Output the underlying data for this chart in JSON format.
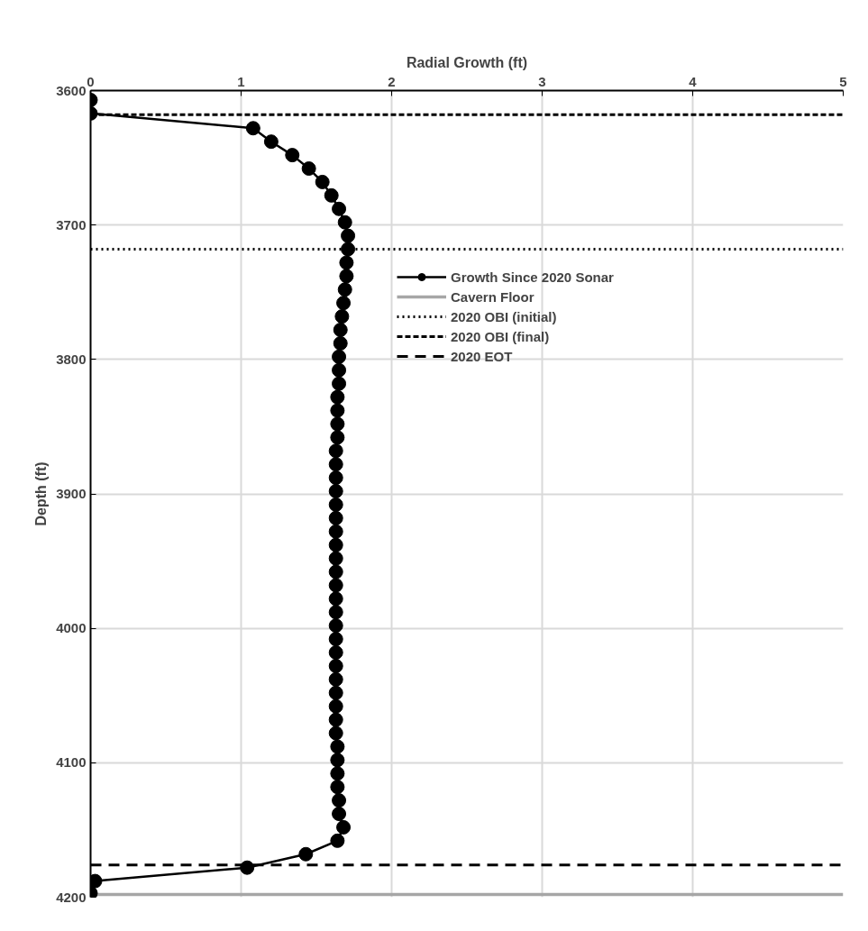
{
  "chart_data": {
    "type": "line",
    "xlabel": "Radial Growth (ft)",
    "ylabel": "Depth (ft)",
    "xlim": [
      0,
      5
    ],
    "xticks": [
      0,
      1,
      2,
      3,
      4,
      5
    ],
    "ylim": [
      4200,
      3600
    ],
    "yticks": [
      3600,
      3700,
      3800,
      3900,
      4000,
      4100,
      4200
    ],
    "grid": true,
    "legend": "right",
    "marker": "circle",
    "line_style": "solid",
    "series": [
      {
        "name": "Growth Since 2020 Sonar",
        "color": "#000000",
        "x": [
          0,
          0,
          1.08,
          1.2,
          1.34,
          1.45,
          1.54,
          1.6,
          1.65,
          1.69,
          1.71,
          1.71,
          1.7,
          1.7,
          1.69,
          1.68,
          1.67,
          1.66,
          1.66,
          1.65,
          1.65,
          1.65,
          1.64,
          1.64,
          1.64,
          1.64,
          1.63,
          1.63,
          1.63,
          1.63,
          1.63,
          1.63,
          1.63,
          1.63,
          1.63,
          1.63,
          1.63,
          1.63,
          1.63,
          1.63,
          1.63,
          1.63,
          1.63,
          1.63,
          1.63,
          1.63,
          1.63,
          1.63,
          1.64,
          1.64,
          1.64,
          1.64,
          1.65,
          1.65,
          1.68,
          1.64,
          1.43,
          1.04,
          0.03,
          0
        ],
        "values": [
          3607,
          3617,
          3628,
          3638,
          3648,
          3658,
          3668,
          3678,
          3688,
          3698,
          3708,
          3718,
          3728,
          3738,
          3748,
          3758,
          3768,
          3778,
          3788,
          3798,
          3808,
          3818,
          3828,
          3838,
          3848,
          3858,
          3868,
          3878,
          3888,
          3898,
          3908,
          3918,
          3928,
          3938,
          3948,
          3958,
          3968,
          3978,
          3988,
          3998,
          4008,
          4018,
          4028,
          4038,
          4048,
          4058,
          4068,
          4078,
          4088,
          4098,
          4108,
          4118,
          4128,
          4138,
          4148,
          4158,
          4168,
          4178,
          4188,
          4197
        ]
      }
    ],
    "ref_lines": [
      {
        "axis": "y",
        "value": 4198,
        "label": "Cavern Floor",
        "color": "#a6a6a6",
        "line_style": "solid"
      },
      {
        "axis": "y",
        "value": 3718,
        "label": "2020 OBI (initial)",
        "color": "#000000",
        "line_style": "dotted"
      },
      {
        "axis": "y",
        "value": 3618,
        "label": "2020 OBI (final)",
        "color": "#000000",
        "line_style": "dashed"
      },
      {
        "axis": "y",
        "value": 4176,
        "label": "2020 EOT",
        "color": "#000000",
        "line_style": "longdash"
      }
    ]
  }
}
